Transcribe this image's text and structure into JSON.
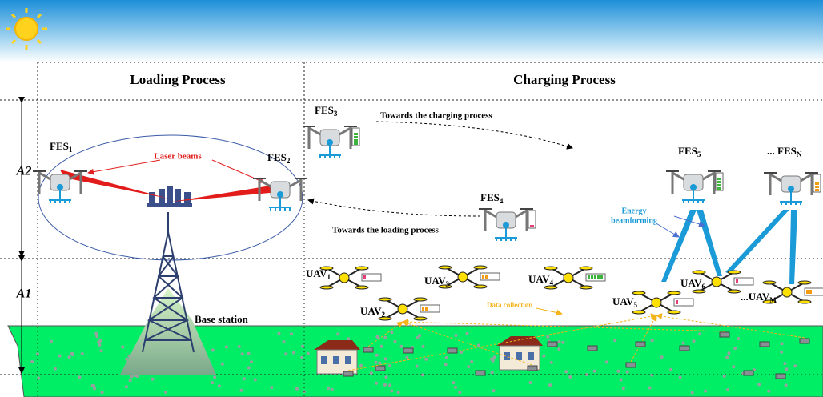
{
  "sections": [
    {
      "title": "Loading Process"
    },
    {
      "title": "Charging Process"
    }
  ],
  "zones": [
    "A2",
    "A1"
  ],
  "fes": [
    {
      "label": "FES",
      "sub": "1"
    },
    {
      "label": "FES",
      "sub": "2"
    },
    {
      "label": "FES",
      "sub": "3"
    },
    {
      "label": "FES",
      "sub": "4"
    },
    {
      "label": "FES",
      "sub": "5"
    },
    {
      "label": "... FES",
      "sub": "N"
    }
  ],
  "uavs": [
    {
      "label": "UAV",
      "sub": "1"
    },
    {
      "label": "UAV",
      "sub": "2"
    },
    {
      "label": "UAV",
      "sub": "3"
    },
    {
      "label": "UAV",
      "sub": "4"
    },
    {
      "label": "UAV",
      "sub": "5"
    },
    {
      "label": "UAV",
      "sub": "6"
    },
    {
      "label": "...UAV",
      "sub": "M"
    }
  ],
  "annotations": {
    "laser": "Laser beams",
    "to_charging": "Towards the charging process",
    "to_loading": "Towards the loading process",
    "energy": [
      "Energy",
      "beamforming"
    ],
    "base_station": "Base station",
    "data": "Data collection"
  }
}
